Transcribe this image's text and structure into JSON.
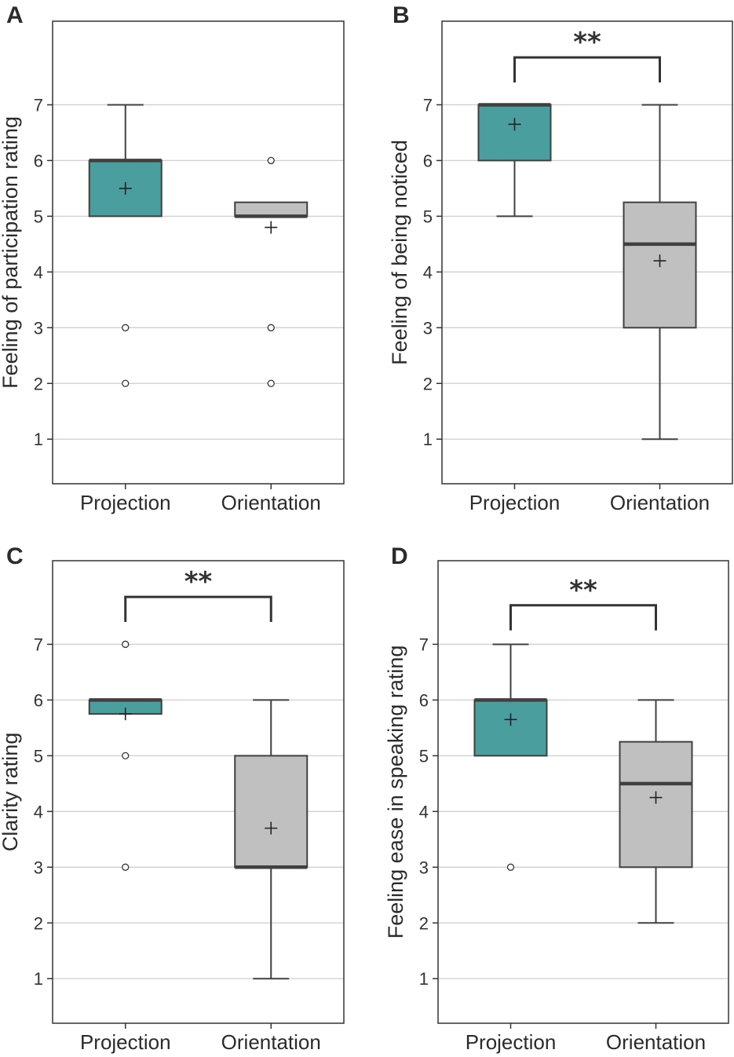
{
  "colors": {
    "projection": "#4a9e9e",
    "orientation": "#c0c0c0",
    "stroke": "#404040",
    "grid": "#cfcfcf"
  },
  "chart_data": [
    {
      "panel": "A",
      "type": "box",
      "categories": [
        "Projection",
        "Orientation"
      ],
      "ylabel": "Feeling of participation rating",
      "yticks": [
        1,
        2,
        3,
        4,
        5,
        6,
        7
      ],
      "ylim": [
        0.2,
        8.5
      ],
      "boxes": [
        {
          "name": "Projection",
          "q1": 5,
          "median": 6,
          "q3": 6,
          "whisker_low": 5,
          "whisker_high": 7,
          "mean": 5.5,
          "outliers": [
            3,
            2
          ]
        },
        {
          "name": "Orientation",
          "q1": 5,
          "median": 5,
          "q3": 5.25,
          "whisker_low": 5,
          "whisker_high": 5.25,
          "mean": 4.8,
          "outliers": [
            6,
            3,
            2
          ]
        }
      ],
      "significance": null
    },
    {
      "panel": "B",
      "type": "box",
      "categories": [
        "Projection",
        "Orientation"
      ],
      "ylabel": "Feeling of being noticed",
      "yticks": [
        1,
        2,
        3,
        4,
        5,
        6,
        7
      ],
      "ylim": [
        0.2,
        8.5
      ],
      "boxes": [
        {
          "name": "Projection",
          "q1": 6,
          "median": 7,
          "q3": 7,
          "whisker_low": 5,
          "whisker_high": 7,
          "mean": 6.65,
          "outliers": []
        },
        {
          "name": "Orientation",
          "q1": 3,
          "median": 4.5,
          "q3": 5.25,
          "whisker_low": 1,
          "whisker_high": 7,
          "mean": 4.2,
          "outliers": []
        }
      ],
      "significance": {
        "label": "**",
        "bracket_y": 7.85,
        "bracket_drop": 7.4
      }
    },
    {
      "panel": "C",
      "type": "box",
      "categories": [
        "Projection",
        "Orientation"
      ],
      "ylabel": "Clarity rating",
      "yticks": [
        1,
        2,
        3,
        4,
        5,
        6,
        7
      ],
      "ylim": [
        0.2,
        8.5
      ],
      "boxes": [
        {
          "name": "Projection",
          "q1": 5.75,
          "median": 6,
          "q3": 6,
          "whisker_low": 5.75,
          "whisker_high": 6,
          "mean": 5.75,
          "outliers": [
            7,
            5,
            3
          ]
        },
        {
          "name": "Orientation",
          "q1": 3,
          "median": 3,
          "q3": 5,
          "whisker_low": 1,
          "whisker_high": 6,
          "mean": 3.7,
          "outliers": []
        }
      ],
      "significance": {
        "label": "**",
        "bracket_y": 7.85,
        "bracket_drop": 7.4
      }
    },
    {
      "panel": "D",
      "type": "box",
      "categories": [
        "Projection",
        "Orientation"
      ],
      "ylabel": "Feeling ease in speaking rating",
      "yticks": [
        1,
        2,
        3,
        4,
        5,
        6,
        7
      ],
      "ylim": [
        0.2,
        8.5
      ],
      "boxes": [
        {
          "name": "Projection",
          "q1": 5,
          "median": 6,
          "q3": 6,
          "whisker_low": 5,
          "whisker_high": 7,
          "mean": 5.65,
          "outliers": [
            3
          ]
        },
        {
          "name": "Orientation",
          "q1": 3,
          "median": 4.5,
          "q3": 5.25,
          "whisker_low": 2,
          "whisker_high": 6,
          "mean": 4.25,
          "outliers": []
        }
      ],
      "significance": {
        "label": "**",
        "bracket_y": 7.7,
        "bracket_drop": 7.25
      }
    }
  ]
}
